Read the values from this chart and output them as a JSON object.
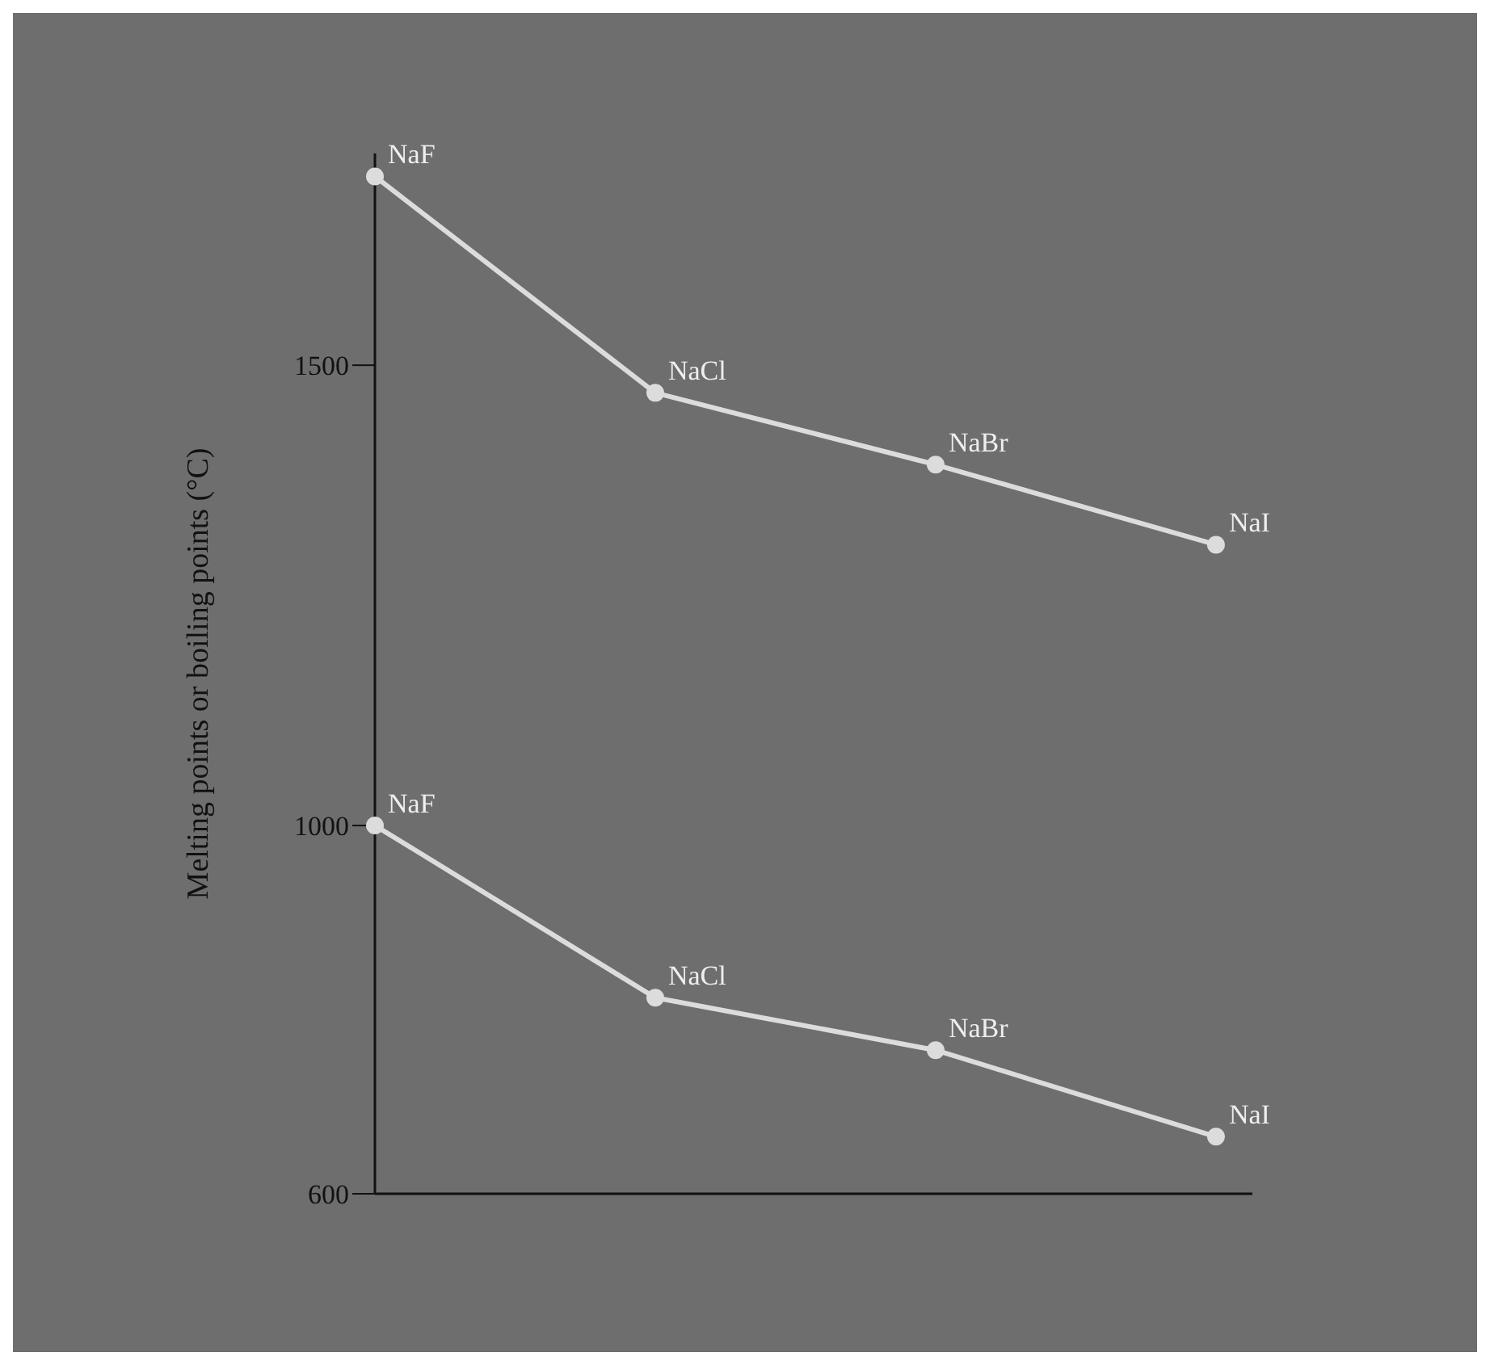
{
  "chart_data": {
    "type": "line",
    "ylabel": "Melting points or boiling points (°C)",
    "categories": [
      "NaF",
      "NaCl",
      "NaBr",
      "NaI"
    ],
    "series": [
      {
        "color": "#dcdcdc",
        "values": [
          1705,
          1470,
          1392,
          1305
        ]
      },
      {
        "color": "#dcdcdc",
        "values": [
          1000,
          813,
          756,
          662
        ]
      }
    ],
    "ylim": [
      600,
      1730
    ],
    "yticks": [
      600,
      1000,
      1500
    ],
    "tick_labels": "y",
    "marker": "circle",
    "line_style": "solid"
  }
}
